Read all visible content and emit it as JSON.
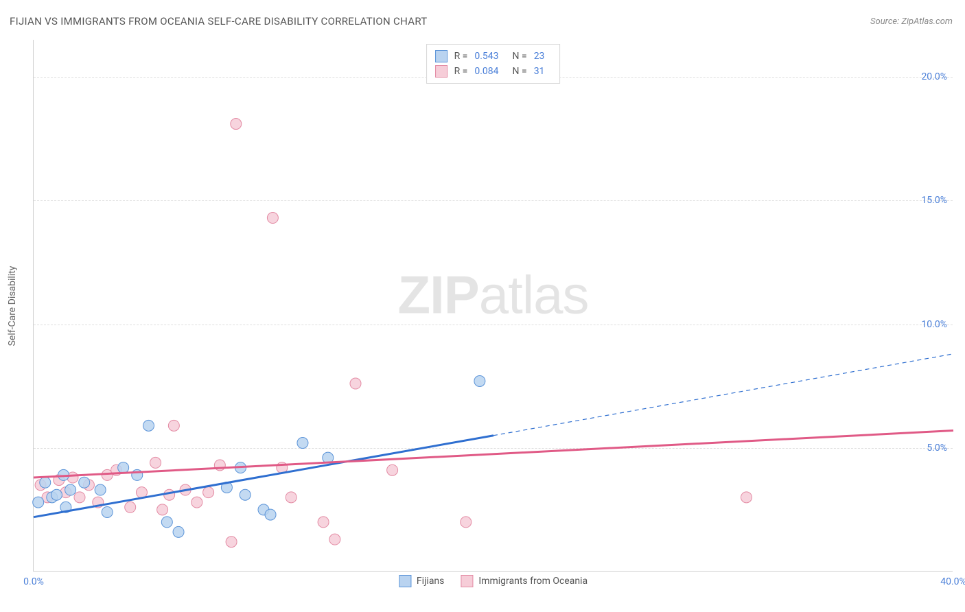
{
  "title": "FIJIAN VS IMMIGRANTS FROM OCEANIA SELF-CARE DISABILITY CORRELATION CHART",
  "source": "Source: ZipAtlas.com",
  "y_axis_label": "Self-Care Disability",
  "watermark": {
    "bold": "ZIP",
    "light": "atlas"
  },
  "chart": {
    "type": "scatter",
    "background_color": "#ffffff",
    "grid_color": "#dedede",
    "axis_color": "#d0d0d0",
    "xlim": [
      0,
      40
    ],
    "ylim": [
      0,
      21.5
    ],
    "x_ticks": [
      {
        "value": 0,
        "label": "0.0%"
      },
      {
        "value": 40,
        "label": "40.0%"
      }
    ],
    "y_ticks": [
      {
        "value": 5,
        "label": "5.0%"
      },
      {
        "value": 10,
        "label": "10.0%"
      },
      {
        "value": 15,
        "label": "15.0%"
      },
      {
        "value": 20,
        "label": "20.0%"
      }
    ],
    "series": [
      {
        "key": "fijians",
        "label": "Fijians",
        "marker_fill": "#b9d3f0",
        "marker_stroke": "#5a93d8",
        "line_color": "#2f6fd0",
        "r_label": "R =",
        "r_value": "0.543",
        "n_label": "N =",
        "n_value": "23",
        "trend": {
          "x1": 0,
          "y1": 2.2,
          "x2": 40,
          "y2": 8.8,
          "solid_until_x": 20
        },
        "points": [
          {
            "x": 0.2,
            "y": 2.8
          },
          {
            "x": 0.5,
            "y": 3.6
          },
          {
            "x": 0.8,
            "y": 3.0
          },
          {
            "x": 1.0,
            "y": 3.1
          },
          {
            "x": 1.3,
            "y": 3.9
          },
          {
            "x": 1.4,
            "y": 2.6
          },
          {
            "x": 1.6,
            "y": 3.3
          },
          {
            "x": 2.2,
            "y": 3.6
          },
          {
            "x": 2.9,
            "y": 3.3
          },
          {
            "x": 3.2,
            "y": 2.4
          },
          {
            "x": 3.9,
            "y": 4.2
          },
          {
            "x": 4.5,
            "y": 3.9
          },
          {
            "x": 5.0,
            "y": 5.9
          },
          {
            "x": 5.8,
            "y": 2.0
          },
          {
            "x": 6.3,
            "y": 1.6
          },
          {
            "x": 8.4,
            "y": 3.4
          },
          {
            "x": 9.0,
            "y": 4.2
          },
          {
            "x": 9.2,
            "y": 3.1
          },
          {
            "x": 10.0,
            "y": 2.5
          },
          {
            "x": 10.3,
            "y": 2.3
          },
          {
            "x": 11.7,
            "y": 5.2
          },
          {
            "x": 12.8,
            "y": 4.6
          },
          {
            "x": 19.4,
            "y": 7.7
          }
        ]
      },
      {
        "key": "oceania",
        "label": "Immigrants from Oceania",
        "marker_fill": "#f6cdd8",
        "marker_stroke": "#e38aa3",
        "line_color": "#e05a86",
        "r_label": "R =",
        "r_value": "0.084",
        "n_label": "N =",
        "n_value": "31",
        "trend": {
          "x1": 0,
          "y1": 3.8,
          "x2": 40,
          "y2": 5.7,
          "solid_until_x": 40
        },
        "points": [
          {
            "x": 0.3,
            "y": 3.5
          },
          {
            "x": 0.6,
            "y": 3.0
          },
          {
            "x": 1.1,
            "y": 3.7
          },
          {
            "x": 1.4,
            "y": 3.2
          },
          {
            "x": 1.7,
            "y": 3.8
          },
          {
            "x": 2.0,
            "y": 3.0
          },
          {
            "x": 2.4,
            "y": 3.5
          },
          {
            "x": 2.8,
            "y": 2.8
          },
          {
            "x": 3.2,
            "y": 3.9
          },
          {
            "x": 3.6,
            "y": 4.1
          },
          {
            "x": 4.2,
            "y": 2.6
          },
          {
            "x": 4.7,
            "y": 3.2
          },
          {
            "x": 5.3,
            "y": 4.4
          },
          {
            "x": 5.6,
            "y": 2.5
          },
          {
            "x": 5.9,
            "y": 3.1
          },
          {
            "x": 6.1,
            "y": 5.9
          },
          {
            "x": 6.6,
            "y": 3.3
          },
          {
            "x": 7.1,
            "y": 2.8
          },
          {
            "x": 7.6,
            "y": 3.2
          },
          {
            "x": 8.1,
            "y": 4.3
          },
          {
            "x": 8.6,
            "y": 1.2
          },
          {
            "x": 8.8,
            "y": 18.1
          },
          {
            "x": 10.4,
            "y": 14.3
          },
          {
            "x": 10.8,
            "y": 4.2
          },
          {
            "x": 12.6,
            "y": 2.0
          },
          {
            "x": 13.1,
            "y": 1.3
          },
          {
            "x": 14.0,
            "y": 7.6
          },
          {
            "x": 15.6,
            "y": 4.1
          },
          {
            "x": 18.8,
            "y": 2.0
          },
          {
            "x": 31.0,
            "y": 3.0
          },
          {
            "x": 11.2,
            "y": 3.0
          }
        ]
      }
    ],
    "marker_radius": 8,
    "marker_opacity": 0.85,
    "line_width_solid": 3,
    "line_width_dashed": 1.2,
    "dash_pattern": "6 5"
  }
}
